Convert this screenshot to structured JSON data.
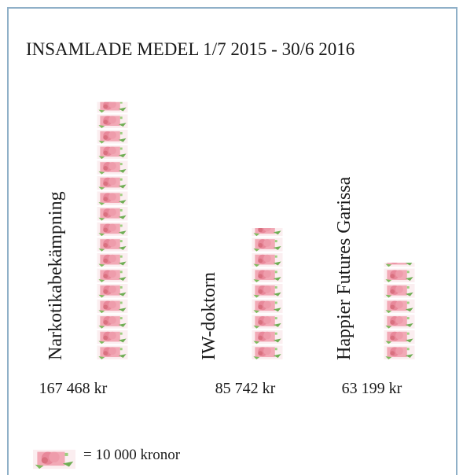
{
  "chart_data": {
    "type": "pictogram",
    "title": "INSAMLADE MEDEL 1/7 2015 - 30/6 2016",
    "categories": [
      "Narkotikabekämpning",
      "IW-doktorn",
      "Happier Futures Garissa"
    ],
    "values": [
      167468,
      85742,
      63199
    ],
    "value_labels": [
      "167 468 kr",
      "85 742 kr",
      "63 199 kr"
    ],
    "unit": {
      "value": 10000,
      "label": "= 10 000 kronor"
    },
    "color": "#e8889a"
  }
}
